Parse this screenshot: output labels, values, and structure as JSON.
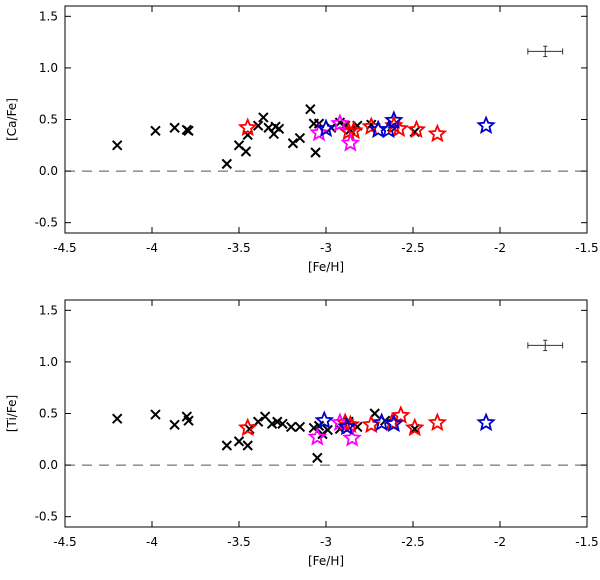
{
  "chart_data": [
    {
      "type": "scatter",
      "xlabel": "[Fe/H]",
      "ylabel": "[Ca/Fe]",
      "xlim": [
        -4.5,
        -1.5
      ],
      "ylim": [
        -0.6,
        1.6
      ],
      "xticks": [
        -4.5,
        -4,
        -3.5,
        -3,
        -2.5,
        -2,
        -1.5
      ],
      "xtick_labels": [
        "-4.5",
        "-4",
        "-3.5",
        "-3",
        "-2.5",
        "-2",
        "-1.5"
      ],
      "yticks": [
        -0.5,
        0.0,
        0.5,
        1.0,
        1.5
      ],
      "ytick_labels": [
        "-0.5",
        "0.0",
        "0.5",
        "1.0",
        "1.5"
      ],
      "reference_line_y": 0.0,
      "error_bar": {
        "x": -1.74,
        "y": 1.16,
        "xerr": 0.1,
        "yerr": 0.05
      },
      "series": [
        {
          "name": "crosses",
          "marker": "x",
          "color": "#000000",
          "x": [
            -4.2,
            -3.98,
            -3.87,
            -3.8,
            -3.79,
            -3.57,
            -3.5,
            -3.46,
            -3.45,
            -3.39,
            -3.36,
            -3.33,
            -3.3,
            -3.29,
            -3.27,
            -3.19,
            -3.15,
            -3.09,
            -3.07,
            -3.06,
            -3.04,
            -2.97,
            -2.92,
            -2.89,
            -2.86,
            -2.82,
            -2.74,
            -2.62,
            -2.49
          ],
          "y": [
            0.25,
            0.39,
            0.42,
            0.4,
            0.39,
            0.07,
            0.25,
            0.19,
            0.35,
            0.44,
            0.52,
            0.42,
            0.36,
            0.43,
            0.41,
            0.27,
            0.32,
            0.6,
            0.46,
            0.18,
            0.46,
            0.42,
            0.47,
            0.44,
            0.4,
            0.44,
            0.45,
            0.43,
            0.38
          ]
        },
        {
          "name": "red stars",
          "marker": "star",
          "color": "#ff0000",
          "x": [
            -3.45,
            -2.87,
            -2.84,
            -2.74,
            -2.61,
            -2.58,
            -2.48,
            -2.36
          ],
          "y": [
            0.43,
            0.39,
            0.4,
            0.44,
            0.45,
            0.42,
            0.41,
            0.37
          ]
        },
        {
          "name": "magenta stars",
          "marker": "star",
          "color": "#ff00ff",
          "x": [
            -3.04,
            -2.92,
            -2.86
          ],
          "y": [
            0.38,
            0.47,
            0.28
          ]
        },
        {
          "name": "blue stars",
          "marker": "star",
          "color": "#0000cc",
          "x": [
            -3.0,
            -2.7,
            -2.64,
            -2.61,
            -2.08
          ],
          "y": [
            0.42,
            0.41,
            0.41,
            0.5,
            0.45
          ]
        }
      ]
    },
    {
      "type": "scatter",
      "xlabel": "[Fe/H]",
      "ylabel": "[Ti/Fe]",
      "xlim": [
        -4.5,
        -1.5
      ],
      "ylim": [
        -0.6,
        1.6
      ],
      "xticks": [
        -4.5,
        -4,
        -3.5,
        -3,
        -2.5,
        -2,
        -1.5
      ],
      "xtick_labels": [
        "-4.5",
        "-4",
        "-3.5",
        "-3",
        "-2.5",
        "-2",
        "-1.5"
      ],
      "yticks": [
        -0.5,
        0.0,
        0.5,
        1.0,
        1.5
      ],
      "ytick_labels": [
        "-0.5",
        "0.0",
        "0.5",
        "1.0",
        "1.5"
      ],
      "reference_line_y": 0.0,
      "error_bar": {
        "x": -1.74,
        "y": 1.16,
        "xerr": 0.1,
        "yerr": 0.05
      },
      "series": [
        {
          "name": "crosses",
          "marker": "x",
          "color": "#000000",
          "x": [
            -4.2,
            -3.98,
            -3.87,
            -3.8,
            -3.79,
            -3.57,
            -3.5,
            -3.45,
            -3.44,
            -3.39,
            -3.35,
            -3.31,
            -3.28,
            -3.25,
            -3.2,
            -3.15,
            -3.07,
            -3.05,
            -3.04,
            -3.02,
            -2.99,
            -2.92,
            -2.87,
            -2.82,
            -2.72,
            -2.66,
            -2.49
          ],
          "y": [
            0.45,
            0.49,
            0.39,
            0.47,
            0.43,
            0.19,
            0.23,
            0.19,
            0.35,
            0.42,
            0.47,
            0.4,
            0.42,
            0.4,
            0.37,
            0.37,
            0.36,
            0.07,
            0.38,
            0.3,
            0.34,
            0.35,
            0.42,
            0.37,
            0.5,
            0.43,
            0.35
          ]
        },
        {
          "name": "red stars",
          "marker": "star",
          "color": "#ff0000",
          "x": [
            -3.45,
            -2.89,
            -2.86,
            -2.74,
            -2.62,
            -2.57,
            -2.49,
            -2.36
          ],
          "y": [
            0.37,
            0.42,
            0.4,
            0.4,
            0.42,
            0.49,
            0.37,
            0.42
          ]
        },
        {
          "name": "magenta stars",
          "marker": "star",
          "color": "#ff00ff",
          "x": [
            -3.05,
            -2.92,
            -2.85
          ],
          "y": [
            0.28,
            0.42,
            0.27
          ]
        },
        {
          "name": "blue stars",
          "marker": "star",
          "color": "#0000cc",
          "x": [
            -3.01,
            -2.88,
            -2.68,
            -2.61,
            -2.08
          ],
          "y": [
            0.44,
            0.38,
            0.42,
            0.41,
            0.42
          ]
        }
      ]
    }
  ]
}
